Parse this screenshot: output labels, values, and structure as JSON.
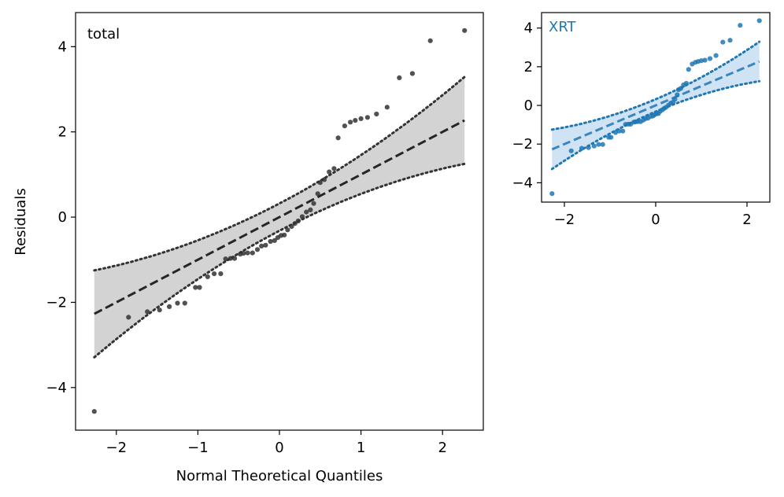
{
  "chart_data": [
    {
      "type": "scatter",
      "panel": "main",
      "title": "total",
      "xlabel": "Normal Theoretical Quantiles",
      "ylabel": "Residuals",
      "xlim": [
        -2.5,
        2.5
      ],
      "ylim": [
        -5.0,
        4.8
      ],
      "xticks": [
        -2,
        -1,
        0,
        1,
        2
      ],
      "xtick_labels": [
        "−2",
        "−1",
        "0",
        "1",
        "2"
      ],
      "yticks": [
        -4,
        -2,
        0,
        2,
        4
      ],
      "ytick_labels": [
        "−4",
        "−2",
        "0",
        "2",
        "4"
      ],
      "grid": false,
      "color": "#333333",
      "band_color": "#d3d3d3",
      "points": [
        [
          -2.27,
          -4.56
        ],
        [
          -1.85,
          -2.35
        ],
        [
          -1.62,
          -2.22
        ],
        [
          -1.47,
          -2.18
        ],
        [
          -1.35,
          -2.1
        ],
        [
          -1.25,
          -2.02
        ],
        [
          -1.16,
          -2.02
        ],
        [
          -1.03,
          -1.65
        ],
        [
          -0.98,
          -1.65
        ],
        [
          -0.88,
          -1.4
        ],
        [
          -0.8,
          -1.33
        ],
        [
          -0.72,
          -1.33
        ],
        [
          -0.66,
          -0.98
        ],
        [
          -0.6,
          -0.97
        ],
        [
          -0.55,
          -0.97
        ],
        [
          -0.48,
          -0.87
        ],
        [
          -0.44,
          -0.85
        ],
        [
          -0.39,
          -0.84
        ],
        [
          -0.33,
          -0.84
        ],
        [
          -0.27,
          -0.76
        ],
        [
          -0.22,
          -0.68
        ],
        [
          -0.17,
          -0.66
        ],
        [
          -0.11,
          -0.57
        ],
        [
          -0.06,
          -0.55
        ],
        [
          -0.02,
          -0.48
        ],
        [
          0.02,
          -0.43
        ],
        [
          0.06,
          -0.42
        ],
        [
          0.1,
          -0.3
        ],
        [
          0.15,
          -0.22
        ],
        [
          0.19,
          -0.15
        ],
        [
          0.23,
          -0.09
        ],
        [
          0.28,
          0.01
        ],
        [
          0.33,
          0.12
        ],
        [
          0.38,
          0.17
        ],
        [
          0.42,
          0.32
        ],
        [
          0.47,
          0.55
        ],
        [
          0.5,
          0.81
        ],
        [
          0.55,
          0.88
        ],
        [
          0.61,
          1.06
        ],
        [
          0.67,
          1.14
        ],
        [
          0.72,
          1.86
        ],
        [
          0.8,
          2.14
        ],
        [
          0.87,
          2.23
        ],
        [
          0.93,
          2.27
        ],
        [
          1.0,
          2.31
        ],
        [
          1.08,
          2.34
        ],
        [
          1.19,
          2.42
        ],
        [
          1.32,
          2.58
        ],
        [
          1.47,
          3.27
        ],
        [
          1.63,
          3.37
        ],
        [
          1.85,
          4.14
        ],
        [
          2.27,
          4.38
        ]
      ],
      "fit_line": {
        "slope": 1.0,
        "intercept": 0.0,
        "style": "dashed"
      },
      "band": {
        "half_width_at_0": 0.32,
        "half_width_at_edge": 1.02,
        "style": "dotted"
      }
    },
    {
      "type": "scatter",
      "panel": "inset",
      "title": "XRT",
      "xlabel": "",
      "ylabel": "",
      "xlim": [
        -2.5,
        2.5
      ],
      "ylim": [
        -5.0,
        4.8
      ],
      "xticks": [
        -2,
        0,
        2
      ],
      "xtick_labels": [
        "−2",
        "0",
        "2"
      ],
      "yticks": [
        -4,
        -2,
        0,
        2,
        4
      ],
      "ytick_labels": [
        "−4",
        "−2",
        "0",
        "2",
        "4"
      ],
      "grid": false,
      "color": "#1f77b4",
      "band_color": "#cfe3f4",
      "points": [
        [
          -2.27,
          -4.56
        ],
        [
          -1.85,
          -2.35
        ],
        [
          -1.62,
          -2.22
        ],
        [
          -1.47,
          -2.18
        ],
        [
          -1.35,
          -2.1
        ],
        [
          -1.25,
          -2.02
        ],
        [
          -1.16,
          -2.02
        ],
        [
          -1.03,
          -1.65
        ],
        [
          -0.98,
          -1.65
        ],
        [
          -0.88,
          -1.4
        ],
        [
          -0.8,
          -1.33
        ],
        [
          -0.72,
          -1.33
        ],
        [
          -0.66,
          -0.98
        ],
        [
          -0.6,
          -0.97
        ],
        [
          -0.55,
          -0.97
        ],
        [
          -0.48,
          -0.87
        ],
        [
          -0.44,
          -0.85
        ],
        [
          -0.39,
          -0.84
        ],
        [
          -0.33,
          -0.84
        ],
        [
          -0.27,
          -0.76
        ],
        [
          -0.22,
          -0.68
        ],
        [
          -0.17,
          -0.66
        ],
        [
          -0.11,
          -0.57
        ],
        [
          -0.06,
          -0.55
        ],
        [
          -0.02,
          -0.48
        ],
        [
          0.02,
          -0.43
        ],
        [
          0.06,
          -0.42
        ],
        [
          0.1,
          -0.3
        ],
        [
          0.15,
          -0.22
        ],
        [
          0.19,
          -0.15
        ],
        [
          0.23,
          -0.09
        ],
        [
          0.28,
          0.01
        ],
        [
          0.33,
          0.12
        ],
        [
          0.38,
          0.17
        ],
        [
          0.42,
          0.32
        ],
        [
          0.47,
          0.55
        ],
        [
          0.5,
          0.81
        ],
        [
          0.55,
          0.88
        ],
        [
          0.61,
          1.06
        ],
        [
          0.67,
          1.14
        ],
        [
          0.72,
          1.86
        ],
        [
          0.8,
          2.14
        ],
        [
          0.87,
          2.23
        ],
        [
          0.93,
          2.27
        ],
        [
          1.0,
          2.31
        ],
        [
          1.08,
          2.34
        ],
        [
          1.19,
          2.42
        ],
        [
          1.32,
          2.58
        ],
        [
          1.47,
          3.27
        ],
        [
          1.63,
          3.37
        ],
        [
          1.85,
          4.14
        ],
        [
          2.27,
          4.38
        ]
      ],
      "fit_line": {
        "slope": 1.0,
        "intercept": 0.0,
        "style": "dashed"
      },
      "band": {
        "half_width_at_0": 0.32,
        "half_width_at_edge": 1.02,
        "style": "dotted"
      }
    }
  ]
}
